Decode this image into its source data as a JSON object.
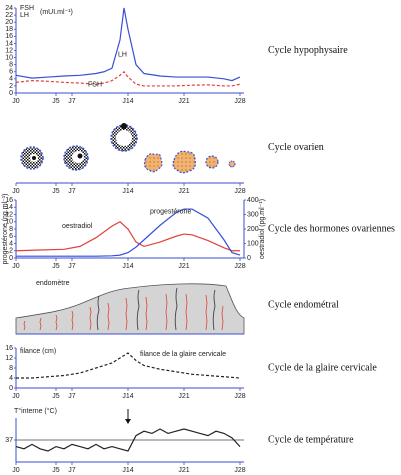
{
  "chart_data": [
    {
      "type": "line",
      "title": "Cycle hypophysaire",
      "ylabel": "(mUI.ml⁻¹)",
      "legend": "upper left",
      "xlim": [
        0,
        28.5
      ],
      "xticks": [
        {
          "value": 0,
          "label": "J0"
        },
        {
          "value": 5,
          "label": "J5"
        },
        {
          "value": 7,
          "label": "J7"
        },
        {
          "value": 14,
          "label": "J14"
        },
        {
          "value": 21,
          "label": "J21"
        },
        {
          "value": 28,
          "label": "J28"
        }
      ],
      "ylim": [
        0,
        24
      ],
      "yticks": [
        0,
        2,
        4,
        6,
        8,
        10,
        12,
        14,
        16,
        18,
        20,
        22,
        24
      ],
      "x": [
        0,
        2,
        4,
        6,
        8,
        10,
        11,
        12,
        13,
        13.5,
        14,
        15,
        16,
        18,
        20,
        22,
        24,
        26,
        27,
        28
      ],
      "series": [
        {
          "name": "FSH",
          "color": "#e0413c",
          "dashed": true,
          "values": [
            3,
            3.5,
            3.3,
            3,
            2.8,
            2.5,
            2.8,
            3.5,
            5,
            6,
            4.5,
            2.5,
            2,
            2,
            2,
            2.2,
            2.3,
            2,
            2,
            2.5
          ]
        },
        {
          "name": "LH",
          "color": "#3a4fd6",
          "values": [
            5,
            4.2,
            4.5,
            4.8,
            5,
            5.5,
            6,
            7,
            15,
            24,
            18,
            8,
            5.5,
            4.8,
            4.5,
            4.5,
            4.5,
            4,
            3.5,
            4.5
          ]
        }
      ]
    },
    {
      "type": "illustration",
      "title": "Cycle ovarien",
      "xlim": [
        0,
        28.5
      ],
      "xticks": [
        {
          "value": 0,
          "label": "J0"
        },
        {
          "value": 5,
          "label": "J5"
        },
        {
          "value": 7,
          "label": "J7"
        },
        {
          "value": 14,
          "label": "J14"
        },
        {
          "value": 21,
          "label": "J21"
        },
        {
          "value": 28,
          "label": "J28"
        }
      ]
    },
    {
      "type": "line",
      "title": "Cycle des hormones ovariennes",
      "ylabel": "progestérone (ng.ml⁻¹)",
      "y2label": "oestradiol (pg.ml⁻¹)",
      "xlim": [
        0,
        28.5
      ],
      "xticks": [
        {
          "value": 0,
          "label": "J0"
        },
        {
          "value": 5,
          "label": "J5"
        },
        {
          "value": 7,
          "label": "J7"
        },
        {
          "value": 14,
          "label": "J14"
        },
        {
          "value": 21,
          "label": "J21"
        },
        {
          "value": 28,
          "label": "J28"
        }
      ],
      "ylim": [
        0,
        16
      ],
      "yticks": [
        0,
        2,
        4,
        6,
        8,
        10,
        12,
        14,
        16
      ],
      "y2lim": [
        0,
        400
      ],
      "y2ticks": [
        0,
        100,
        200,
        300,
        400
      ],
      "x": [
        0,
        3,
        6,
        8,
        10,
        12,
        13,
        14,
        15,
        16,
        18,
        20,
        21,
        22,
        24,
        26,
        27,
        28
      ],
      "series": [
        {
          "name": "oestradiol",
          "color": "#e0413c",
          "axis": "y2",
          "values": [
            50,
            55,
            60,
            80,
            140,
            220,
            250,
            200,
            110,
            80,
            110,
            150,
            165,
            160,
            120,
            70,
            50,
            50
          ]
        },
        {
          "name": "progestérone",
          "color": "#3a4fd6",
          "values": [
            0.5,
            0.5,
            0.5,
            0.5,
            0.5,
            0.6,
            0.8,
            1.5,
            3,
            5,
            9,
            12.5,
            13.5,
            13.5,
            11,
            5,
            1.5,
            0.8
          ]
        }
      ]
    },
    {
      "type": "illustration",
      "title": "Cycle endométral",
      "xlim": [
        0,
        28.5
      ],
      "annotations": [
        "endomètre"
      ]
    },
    {
      "type": "line",
      "title": "Cycle de la glaire cervicale",
      "ylabel": "filance (cm)",
      "xlim": [
        0,
        28.5
      ],
      "xticks": [
        {
          "value": 0,
          "label": "J0"
        },
        {
          "value": 5,
          "label": "J5"
        },
        {
          "value": 7,
          "label": "J7"
        },
        {
          "value": 14,
          "label": "J14"
        },
        {
          "value": 21,
          "label": "J21"
        },
        {
          "value": 28,
          "label": "J28"
        }
      ],
      "ylim": [
        0,
        16
      ],
      "yticks": [
        0,
        4,
        8,
        12,
        16
      ],
      "x": [
        0,
        2,
        4,
        6,
        8,
        10,
        12,
        13,
        14,
        15,
        16,
        18,
        20,
        22,
        24,
        26,
        28
      ],
      "series": [
        {
          "name": "filance de la glaire cervicale",
          "color": "#222222",
          "dashed": true,
          "values": [
            4,
            4,
            4.5,
            5,
            6,
            8,
            10,
            12,
            14,
            11,
            9,
            7.5,
            6.5,
            5.5,
            5,
            4.5,
            4
          ]
        }
      ]
    },
    {
      "type": "line",
      "title": "Cycle de température",
      "ylabel": "T°interne (°C)",
      "grid": true,
      "xlim": [
        0,
        28.5
      ],
      "xticks": [
        {
          "value": 0,
          "label": "J0"
        },
        {
          "value": 5,
          "label": "J5"
        },
        {
          "value": 7,
          "label": "J7"
        },
        {
          "value": 14,
          "label": "J14"
        },
        {
          "value": 21,
          "label": "J21"
        },
        {
          "value": 28,
          "label": "J28"
        }
      ],
      "ylim": [
        36.5,
        37.5
      ],
      "yticks": [
        37
      ],
      "x": [
        0,
        1,
        2,
        3,
        4,
        5,
        6,
        7,
        8,
        9,
        10,
        11,
        12,
        13,
        14,
        15,
        16,
        17,
        18,
        19,
        20,
        21,
        22,
        23,
        24,
        25,
        26,
        27,
        28
      ],
      "series": [
        {
          "name": "T°",
          "color": "#222222",
          "values": [
            36.85,
            36.8,
            36.9,
            36.8,
            36.75,
            36.85,
            36.8,
            36.9,
            36.85,
            36.8,
            36.9,
            36.8,
            36.85,
            36.8,
            36.75,
            37.1,
            37.2,
            37.15,
            37.25,
            37.15,
            37.2,
            37.25,
            37.2,
            37.15,
            37.1,
            37.2,
            37.15,
            37.05,
            36.85
          ]
        }
      ]
    }
  ]
}
